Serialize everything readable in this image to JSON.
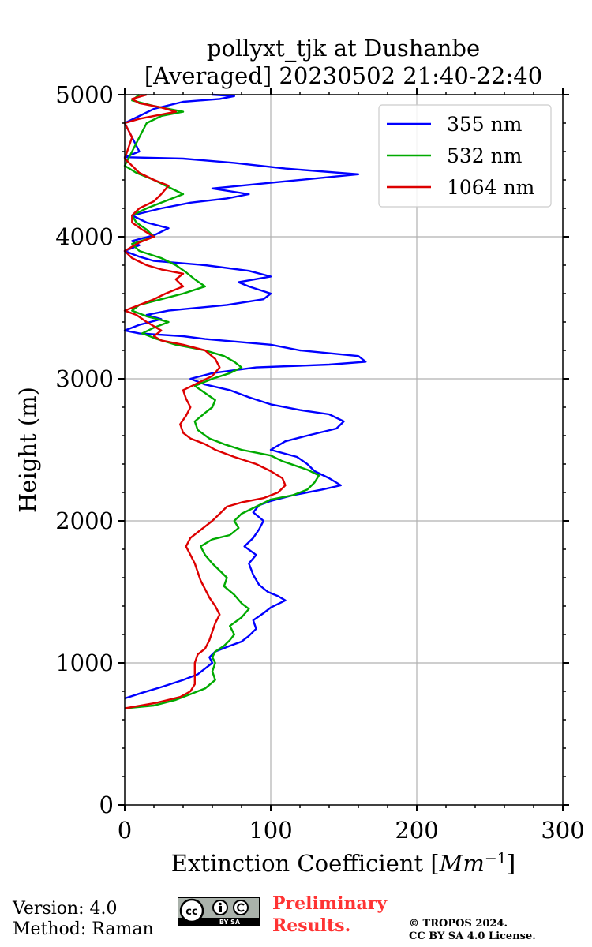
{
  "chart_data": {
    "type": "line",
    "title": [
      "pollyxt_tjk at Dushanbe",
      "[Averaged] 20230502 21:40-22:40"
    ],
    "xlabel_text": "Extinction Coefficient [",
    "xlabel_unit": "Mm",
    "xlabel_exp": "−1",
    "xlabel_close": "]",
    "ylabel": "Height (m)",
    "xlim": [
      0,
      300
    ],
    "ylim": [
      0,
      5000
    ],
    "x_ticks": [
      0,
      100,
      200,
      300
    ],
    "x_tick_labels": [
      "0",
      "100",
      "200",
      "300"
    ],
    "y_ticks": [
      0,
      1000,
      2000,
      3000,
      4000,
      5000
    ],
    "y_tick_labels": [
      "0",
      "1000",
      "2000",
      "3000",
      "4000",
      "5000"
    ],
    "x_minor_step": 20,
    "y_minor_step": 200,
    "grid": true,
    "legend_position": "top-right",
    "series": [
      {
        "name": "355 nm",
        "color": "#0000ff",
        "points": [
          [
            0,
            750
          ],
          [
            12,
            790
          ],
          [
            25,
            830
          ],
          [
            40,
            880
          ],
          [
            50,
            920
          ],
          [
            55,
            960
          ],
          [
            60,
            1000
          ],
          [
            58,
            1040
          ],
          [
            62,
            1080
          ],
          [
            72,
            1120
          ],
          [
            80,
            1150
          ],
          [
            85,
            1190
          ],
          [
            90,
            1240
          ],
          [
            88,
            1300
          ],
          [
            95,
            1350
          ],
          [
            100,
            1390
          ],
          [
            110,
            1440
          ],
          [
            105,
            1470
          ],
          [
            98,
            1500
          ],
          [
            92,
            1550
          ],
          [
            88,
            1620
          ],
          [
            85,
            1700
          ],
          [
            90,
            1760
          ],
          [
            82,
            1820
          ],
          [
            88,
            1880
          ],
          [
            92,
            1940
          ],
          [
            95,
            2000
          ],
          [
            88,
            2060
          ],
          [
            92,
            2110
          ],
          [
            100,
            2140
          ],
          [
            115,
            2180
          ],
          [
            135,
            2220
          ],
          [
            148,
            2250
          ],
          [
            140,
            2300
          ],
          [
            130,
            2350
          ],
          [
            125,
            2400
          ],
          [
            118,
            2450
          ],
          [
            100,
            2500
          ],
          [
            110,
            2560
          ],
          [
            125,
            2600
          ],
          [
            145,
            2650
          ],
          [
            150,
            2700
          ],
          [
            140,
            2750
          ],
          [
            120,
            2780
          ],
          [
            100,
            2820
          ],
          [
            85,
            2870
          ],
          [
            72,
            2920
          ],
          [
            55,
            2960
          ],
          [
            45,
            3000
          ],
          [
            60,
            3040
          ],
          [
            90,
            3080
          ],
          [
            140,
            3100
          ],
          [
            165,
            3120
          ],
          [
            160,
            3160
          ],
          [
            120,
            3200
          ],
          [
            100,
            3240
          ],
          [
            55,
            3280
          ],
          [
            40,
            3300
          ],
          [
            10,
            3320
          ],
          [
            0,
            3340
          ],
          [
            10,
            3380
          ],
          [
            25,
            3420
          ],
          [
            15,
            3450
          ],
          [
            30,
            3480
          ],
          [
            70,
            3520
          ],
          [
            95,
            3560
          ],
          [
            100,
            3600
          ],
          [
            85,
            3650
          ],
          [
            78,
            3680
          ],
          [
            100,
            3720
          ],
          [
            85,
            3760
          ],
          [
            55,
            3800
          ],
          [
            20,
            3830
          ],
          [
            10,
            3860
          ],
          [
            0,
            3900
          ],
          [
            10,
            3940
          ],
          [
            5,
            3970
          ],
          [
            20,
            4010
          ],
          [
            30,
            4060
          ],
          [
            15,
            4100
          ],
          [
            5,
            4150
          ],
          [
            25,
            4200
          ],
          [
            45,
            4240
          ],
          [
            70,
            4270
          ],
          [
            85,
            4300
          ],
          [
            60,
            4340
          ],
          [
            100,
            4380
          ],
          [
            160,
            4440
          ],
          [
            110,
            4480
          ],
          [
            75,
            4520
          ],
          [
            40,
            4550
          ],
          [
            0,
            4560
          ],
          [
            10,
            4600
          ],
          [
            5,
            4700
          ],
          [
            0,
            4800
          ],
          [
            10,
            4850
          ],
          [
            20,
            4900
          ],
          [
            40,
            4950
          ],
          [
            65,
            4970
          ],
          [
            75,
            4990
          ],
          [
            60,
            5000
          ]
        ]
      },
      {
        "name": "532 nm",
        "color": "#00aa00",
        "points": [
          [
            0,
            680
          ],
          [
            20,
            700
          ],
          [
            35,
            740
          ],
          [
            45,
            780
          ],
          [
            55,
            820
          ],
          [
            62,
            880
          ],
          [
            60,
            940
          ],
          [
            62,
            1000
          ],
          [
            60,
            1040
          ],
          [
            62,
            1080
          ],
          [
            68,
            1120
          ],
          [
            72,
            1160
          ],
          [
            75,
            1200
          ],
          [
            72,
            1260
          ],
          [
            80,
            1320
          ],
          [
            85,
            1380
          ],
          [
            80,
            1420
          ],
          [
            75,
            1480
          ],
          [
            68,
            1540
          ],
          [
            70,
            1600
          ],
          [
            65,
            1650
          ],
          [
            60,
            1700
          ],
          [
            55,
            1760
          ],
          [
            52,
            1820
          ],
          [
            60,
            1870
          ],
          [
            72,
            1900
          ],
          [
            78,
            1950
          ],
          [
            75,
            2000
          ],
          [
            80,
            2050
          ],
          [
            90,
            2100
          ],
          [
            100,
            2150
          ],
          [
            115,
            2180
          ],
          [
            125,
            2220
          ],
          [
            130,
            2270
          ],
          [
            133,
            2320
          ],
          [
            125,
            2360
          ],
          [
            108,
            2420
          ],
          [
            100,
            2460
          ],
          [
            80,
            2500
          ],
          [
            68,
            2540
          ],
          [
            58,
            2580
          ],
          [
            50,
            2640
          ],
          [
            48,
            2700
          ],
          [
            55,
            2760
          ],
          [
            60,
            2800
          ],
          [
            62,
            2850
          ],
          [
            55,
            2900
          ],
          [
            48,
            2950
          ],
          [
            60,
            3000
          ],
          [
            72,
            3040
          ],
          [
            80,
            3080
          ],
          [
            75,
            3120
          ],
          [
            68,
            3160
          ],
          [
            55,
            3200
          ],
          [
            35,
            3240
          ],
          [
            22,
            3280
          ],
          [
            12,
            3320
          ],
          [
            20,
            3360
          ],
          [
            30,
            3400
          ],
          [
            15,
            3440
          ],
          [
            5,
            3480
          ],
          [
            10,
            3520
          ],
          [
            25,
            3560
          ],
          [
            40,
            3600
          ],
          [
            55,
            3650
          ],
          [
            48,
            3700
          ],
          [
            42,
            3750
          ],
          [
            35,
            3800
          ],
          [
            25,
            3850
          ],
          [
            10,
            3900
          ],
          [
            5,
            3950
          ],
          [
            20,
            4000
          ],
          [
            15,
            4050
          ],
          [
            8,
            4100
          ],
          [
            5,
            4150
          ],
          [
            15,
            4200
          ],
          [
            25,
            4240
          ],
          [
            40,
            4300
          ],
          [
            30,
            4350
          ],
          [
            20,
            4400
          ],
          [
            8,
            4450
          ],
          [
            0,
            4500
          ],
          [
            5,
            4600
          ],
          [
            10,
            4700
          ],
          [
            15,
            4800
          ],
          [
            25,
            4850
          ],
          [
            40,
            4880
          ],
          [
            20,
            4920
          ],
          [
            5,
            4960
          ],
          [
            10,
            5000
          ]
        ]
      },
      {
        "name": "1064 nm",
        "color": "#dd0000",
        "points": [
          [
            0,
            680
          ],
          [
            22,
            720
          ],
          [
            38,
            760
          ],
          [
            45,
            800
          ],
          [
            48,
            850
          ],
          [
            48,
            900
          ],
          [
            48,
            950
          ],
          [
            48,
            1000
          ],
          [
            50,
            1060
          ],
          [
            55,
            1100
          ],
          [
            58,
            1160
          ],
          [
            60,
            1220
          ],
          [
            62,
            1280
          ],
          [
            65,
            1340
          ],
          [
            62,
            1400
          ],
          [
            58,
            1460
          ],
          [
            55,
            1520
          ],
          [
            52,
            1580
          ],
          [
            50,
            1640
          ],
          [
            48,
            1700
          ],
          [
            45,
            1760
          ],
          [
            42,
            1820
          ],
          [
            45,
            1880
          ],
          [
            50,
            1920
          ],
          [
            55,
            1960
          ],
          [
            60,
            2000
          ],
          [
            65,
            2050
          ],
          [
            70,
            2100
          ],
          [
            80,
            2130
          ],
          [
            95,
            2160
          ],
          [
            105,
            2200
          ],
          [
            110,
            2250
          ],
          [
            108,
            2300
          ],
          [
            100,
            2350
          ],
          [
            90,
            2400
          ],
          [
            75,
            2450
          ],
          [
            62,
            2500
          ],
          [
            55,
            2540
          ],
          [
            45,
            2580
          ],
          [
            40,
            2620
          ],
          [
            38,
            2680
          ],
          [
            42,
            2740
          ],
          [
            45,
            2800
          ],
          [
            42,
            2860
          ],
          [
            40,
            2920
          ],
          [
            50,
            2970
          ],
          [
            60,
            3020
          ],
          [
            65,
            3080
          ],
          [
            62,
            3140
          ],
          [
            55,
            3200
          ],
          [
            40,
            3240
          ],
          [
            25,
            3270
          ],
          [
            20,
            3300
          ],
          [
            25,
            3340
          ],
          [
            15,
            3400
          ],
          [
            8,
            3450
          ],
          [
            0,
            3480
          ],
          [
            10,
            3520
          ],
          [
            20,
            3560
          ],
          [
            28,
            3600
          ],
          [
            40,
            3650
          ],
          [
            35,
            3700
          ],
          [
            40,
            3740
          ],
          [
            25,
            3770
          ],
          [
            15,
            3800
          ],
          [
            5,
            3850
          ],
          [
            0,
            3900
          ],
          [
            10,
            3960
          ],
          [
            20,
            4000
          ],
          [
            12,
            4050
          ],
          [
            5,
            4100
          ],
          [
            5,
            4150
          ],
          [
            10,
            4200
          ],
          [
            20,
            4250
          ],
          [
            25,
            4300
          ],
          [
            30,
            4360
          ],
          [
            20,
            4400
          ],
          [
            10,
            4450
          ],
          [
            5,
            4500
          ],
          [
            0,
            4550
          ],
          [
            5,
            4700
          ],
          [
            0,
            4800
          ],
          [
            10,
            4830
          ],
          [
            25,
            4860
          ],
          [
            35,
            4880
          ],
          [
            25,
            4910
          ],
          [
            10,
            4940
          ],
          [
            5,
            4970
          ],
          [
            15,
            5000
          ]
        ]
      }
    ]
  },
  "footer": {
    "version": "Version: 4.0",
    "method": "Method: Raman",
    "preliminary_line1": "Preliminary",
    "preliminary_line2": "Results.",
    "copyright_line1": "© TROPOS 2024.",
    "copyright_line2": "CC BY SA 4.0 License.",
    "license_badge_text": "BY SA",
    "license_badge_cc": "cc"
  }
}
